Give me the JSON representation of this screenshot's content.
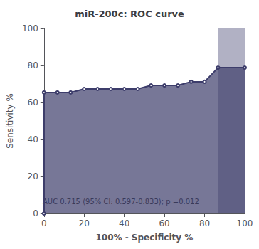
{
  "chart_data": {
    "type": "line",
    "title": "miR-200c: ROC curve",
    "xlabel": "100% - Specificity %",
    "ylabel": "Sensitivity %",
    "annotation": "AUC 0.715 (95% CI: 0.597-0.833); p =0.012",
    "x": [
      0,
      0,
      6.7,
      13.3,
      20,
      26.7,
      33.3,
      40,
      46.7,
      53.3,
      60,
      66.7,
      73.3,
      80,
      86.7,
      100
    ],
    "values": [
      0,
      65.4,
      65.4,
      65.4,
      67.3,
      67.3,
      67.3,
      67.3,
      67.3,
      69.2,
      69.2,
      69.2,
      71.2,
      71.2,
      78.8,
      78.8
    ],
    "color": "#3d3d6b",
    "shade_x_start": 86.7,
    "xlim": [
      0,
      100
    ],
    "ylim": [
      0,
      100
    ],
    "xticks": [
      0,
      20,
      40,
      60,
      80,
      100
    ],
    "yticks": [
      0,
      20,
      40,
      60,
      80,
      100
    ],
    "grid": false
  }
}
